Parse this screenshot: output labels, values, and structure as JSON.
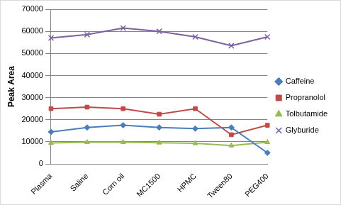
{
  "chart_data": {
    "type": "line",
    "y_label": "Peak Area",
    "categories": [
      "Plasma",
      "Saline",
      "Corn oil",
      "MC1500",
      "HPMC",
      "Tween80",
      "PEG400"
    ],
    "series": [
      {
        "name": "Caffeine",
        "color": "#4a7ebb",
        "marker": "diamond",
        "values": [
          14500,
          16500,
          17500,
          16500,
          16000,
          16500,
          5000
        ]
      },
      {
        "name": "Propranolol",
        "color": "#be4b48",
        "marker": "square",
        "values": [
          25000,
          25700,
          25000,
          22500,
          25000,
          13200,
          17500
        ]
      },
      {
        "name": "Tolbutamide",
        "color": "#98b954",
        "marker": "triangle",
        "values": [
          9500,
          9800,
          9800,
          9600,
          9300,
          8300,
          9800
        ]
      },
      {
        "name": "Glyburide",
        "color": "#7d60a0",
        "marker": "x",
        "values": [
          57000,
          58500,
          61500,
          60000,
          57500,
          53500,
          57500
        ]
      }
    ],
    "ylim": [
      0,
      70000
    ],
    "yticks": [
      0,
      10000,
      20000,
      30000,
      40000,
      50000,
      60000,
      70000
    ],
    "grid": true,
    "legend": "right"
  }
}
